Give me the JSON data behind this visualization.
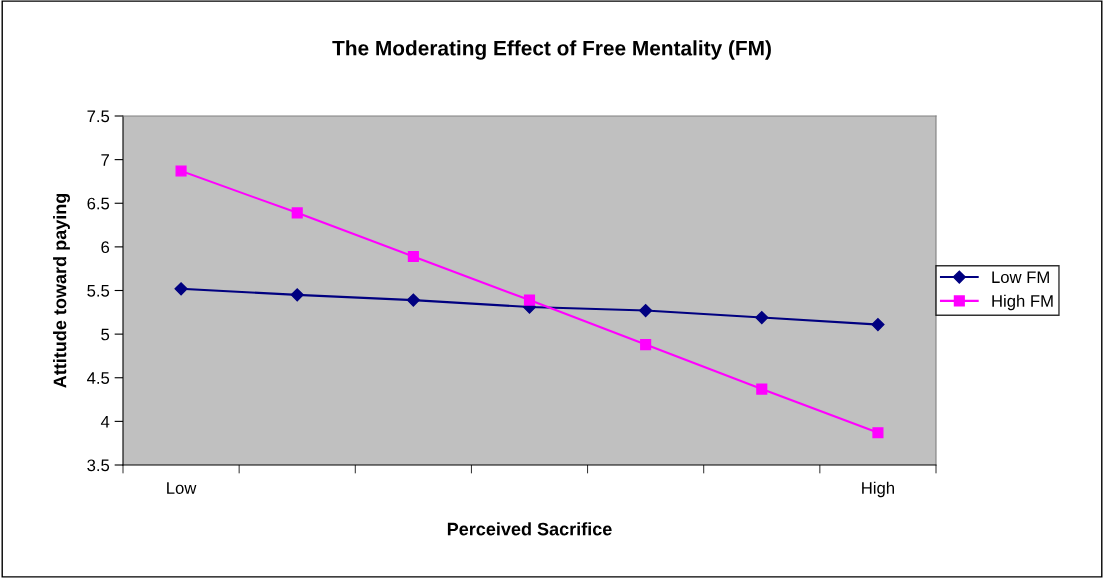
{
  "chart_data": {
    "type": "line",
    "title": "The Moderating Effect of Free Mentality (FM)",
    "xlabel": "Perceived Sacrifice",
    "ylabel": "Attitude toward paying",
    "categories": [
      "Low",
      null,
      null,
      null,
      null,
      null,
      "High"
    ],
    "series": [
      {
        "name": "Low FM",
        "color": "#000080",
        "marker": "diamond",
        "values": [
          5.52,
          5.45,
          5.39,
          5.31,
          5.27,
          5.19,
          5.11
        ]
      },
      {
        "name": "High FM",
        "color": "#ff00ff",
        "marker": "square",
        "values": [
          6.87,
          6.39,
          5.89,
          5.39,
          4.88,
          4.37,
          3.87
        ]
      }
    ],
    "ylim": [
      3.5,
      7.5
    ],
    "yticks": [
      3.5,
      4,
      4.5,
      5,
      5.5,
      6,
      6.5,
      7,
      7.5
    ],
    "grid": false,
    "legend": "right"
  }
}
